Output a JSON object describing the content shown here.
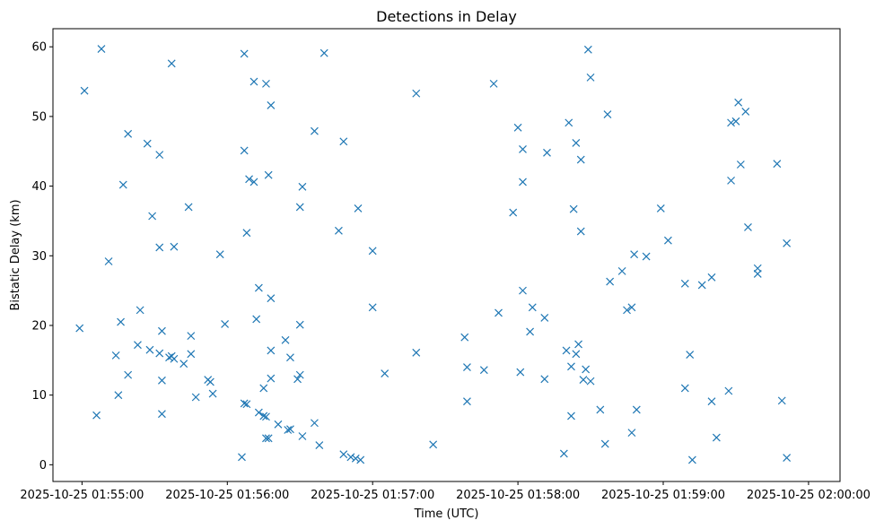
{
  "chart_data": {
    "type": "scatter",
    "title": "Detections in Delay",
    "xlabel": "Time (UTC)",
    "ylabel": "Bistatic Delay (km)",
    "x_tick_labels": [
      "2025-10-25 01:55:00",
      "2025-10-25 01:56:00",
      "2025-10-25 01:57:00",
      "2025-10-25 01:58:00",
      "2025-10-25 01:59:00",
      "2025-10-25 02:00:00"
    ],
    "y_tick_labels": [
      "0",
      "10",
      "20",
      "30",
      "40",
      "50",
      "60"
    ],
    "xlim": [
      "2025-10-25 01:54:48",
      "2025-10-25 02:00:13"
    ],
    "ylim": [
      -2.4,
      62.6
    ],
    "grid": false,
    "marker": "x",
    "color": "#1f77b4",
    "points": [
      {
        "t": "2025-10-25 01:54:59",
        "y": 19.6
      },
      {
        "t": "2025-10-25 01:55:01",
        "y": 53.7
      },
      {
        "t": "2025-10-25 01:55:06",
        "y": 7.1
      },
      {
        "t": "2025-10-25 01:55:08",
        "y": 59.7
      },
      {
        "t": "2025-10-25 01:55:11",
        "y": 29.2
      },
      {
        "t": "2025-10-25 01:55:14",
        "y": 15.7
      },
      {
        "t": "2025-10-25 01:55:15",
        "y": 10.0
      },
      {
        "t": "2025-10-25 01:55:16",
        "y": 20.5
      },
      {
        "t": "2025-10-25 01:55:17",
        "y": 40.2
      },
      {
        "t": "2025-10-25 01:55:19",
        "y": 47.5
      },
      {
        "t": "2025-10-25 01:55:19",
        "y": 12.9
      },
      {
        "t": "2025-10-25 01:55:23",
        "y": 17.2
      },
      {
        "t": "2025-10-25 01:55:24",
        "y": 22.2
      },
      {
        "t": "2025-10-25 01:55:27",
        "y": 46.1
      },
      {
        "t": "2025-10-25 01:55:28",
        "y": 16.5
      },
      {
        "t": "2025-10-25 01:55:29",
        "y": 35.7
      },
      {
        "t": "2025-10-25 01:55:32",
        "y": 44.5
      },
      {
        "t": "2025-10-25 01:55:32",
        "y": 31.2
      },
      {
        "t": "2025-10-25 01:55:32",
        "y": 16.0
      },
      {
        "t": "2025-10-25 01:55:33",
        "y": 19.2
      },
      {
        "t": "2025-10-25 01:55:33",
        "y": 12.1
      },
      {
        "t": "2025-10-25 01:55:33",
        "y": 7.3
      },
      {
        "t": "2025-10-25 01:55:36",
        "y": 15.4
      },
      {
        "t": "2025-10-25 01:55:37",
        "y": 57.6
      },
      {
        "t": "2025-10-25 01:55:37",
        "y": 15.6
      },
      {
        "t": "2025-10-25 01:55:38",
        "y": 31.3
      },
      {
        "t": "2025-10-25 01:55:38",
        "y": 15.2
      },
      {
        "t": "2025-10-25 01:55:42",
        "y": 14.5
      },
      {
        "t": "2025-10-25 01:55:44",
        "y": 37.0
      },
      {
        "t": "2025-10-25 01:55:45",
        "y": 15.9
      },
      {
        "t": "2025-10-25 01:55:45",
        "y": 18.5
      },
      {
        "t": "2025-10-25 01:55:47",
        "y": 9.7
      },
      {
        "t": "2025-10-25 01:55:52",
        "y": 12.2
      },
      {
        "t": "2025-10-25 01:55:53",
        "y": 11.9
      },
      {
        "t": "2025-10-25 01:55:54",
        "y": 10.2
      },
      {
        "t": "2025-10-25 01:55:57",
        "y": 30.2
      },
      {
        "t": "2025-10-25 01:55:59",
        "y": 20.2
      },
      {
        "t": "2025-10-25 01:56:06",
        "y": 1.1
      },
      {
        "t": "2025-10-25 01:56:07",
        "y": 59.0
      },
      {
        "t": "2025-10-25 01:56:07",
        "y": 45.1
      },
      {
        "t": "2025-10-25 01:56:07",
        "y": 8.8
      },
      {
        "t": "2025-10-25 01:56:08",
        "y": 8.7
      },
      {
        "t": "2025-10-25 01:56:08",
        "y": 33.3
      },
      {
        "t": "2025-10-25 01:56:09",
        "y": 41.0
      },
      {
        "t": "2025-10-25 01:56:11",
        "y": 55.0
      },
      {
        "t": "2025-10-25 01:56:11",
        "y": 40.6
      },
      {
        "t": "2025-10-25 01:56:12",
        "y": 20.9
      },
      {
        "t": "2025-10-25 01:56:13",
        "y": 25.4
      },
      {
        "t": "2025-10-25 01:56:13",
        "y": 7.5
      },
      {
        "t": "2025-10-25 01:56:15",
        "y": 11.0
      },
      {
        "t": "2025-10-25 01:56:15",
        "y": 7.0
      },
      {
        "t": "2025-10-25 01:56:16",
        "y": 54.7
      },
      {
        "t": "2025-10-25 01:56:16",
        "y": 6.9
      },
      {
        "t": "2025-10-25 01:56:16",
        "y": 3.8
      },
      {
        "t": "2025-10-25 01:56:17",
        "y": 41.6
      },
      {
        "t": "2025-10-25 01:56:17",
        "y": 3.8
      },
      {
        "t": "2025-10-25 01:56:18",
        "y": 51.6
      },
      {
        "t": "2025-10-25 01:56:18",
        "y": 23.9
      },
      {
        "t": "2025-10-25 01:56:18",
        "y": 16.4
      },
      {
        "t": "2025-10-25 01:56:18",
        "y": 12.4
      },
      {
        "t": "2025-10-25 01:56:21",
        "y": 5.8
      },
      {
        "t": "2025-10-25 01:56:24",
        "y": 17.9
      },
      {
        "t": "2025-10-25 01:56:25",
        "y": 5.0
      },
      {
        "t": "2025-10-25 01:56:26",
        "y": 15.4
      },
      {
        "t": "2025-10-25 01:56:26",
        "y": 5.1
      },
      {
        "t": "2025-10-25 01:56:29",
        "y": 12.3
      },
      {
        "t": "2025-10-25 01:56:30",
        "y": 37.0
      },
      {
        "t": "2025-10-25 01:56:30",
        "y": 20.1
      },
      {
        "t": "2025-10-25 01:56:30",
        "y": 12.9
      },
      {
        "t": "2025-10-25 01:56:31",
        "y": 39.9
      },
      {
        "t": "2025-10-25 01:56:31",
        "y": 4.1
      },
      {
        "t": "2025-10-25 01:56:36",
        "y": 47.9
      },
      {
        "t": "2025-10-25 01:56:36",
        "y": 6.0
      },
      {
        "t": "2025-10-25 01:56:38",
        "y": 2.8
      },
      {
        "t": "2025-10-25 01:56:40",
        "y": 59.1
      },
      {
        "t": "2025-10-25 01:56:46",
        "y": 33.6
      },
      {
        "t": "2025-10-25 01:56:48",
        "y": 46.4
      },
      {
        "t": "2025-10-25 01:56:48",
        "y": 1.5
      },
      {
        "t": "2025-10-25 01:56:51",
        "y": 1.1
      },
      {
        "t": "2025-10-25 01:56:53",
        "y": 0.9
      },
      {
        "t": "2025-10-25 01:56:54",
        "y": 36.8
      },
      {
        "t": "2025-10-25 01:56:55",
        "y": 0.7
      },
      {
        "t": "2025-10-25 01:57:00",
        "y": 30.7
      },
      {
        "t": "2025-10-25 01:57:00",
        "y": 22.6
      },
      {
        "t": "2025-10-25 01:57:05",
        "y": 13.1
      },
      {
        "t": "2025-10-25 01:57:18",
        "y": 53.3
      },
      {
        "t": "2025-10-25 01:57:18",
        "y": 16.1
      },
      {
        "t": "2025-10-25 01:57:25",
        "y": 2.9
      },
      {
        "t": "2025-10-25 01:57:38",
        "y": 18.3
      },
      {
        "t": "2025-10-25 01:57:39",
        "y": 14.0
      },
      {
        "t": "2025-10-25 01:57:39",
        "y": 9.1
      },
      {
        "t": "2025-10-25 01:57:46",
        "y": 13.6
      },
      {
        "t": "2025-10-25 01:57:50",
        "y": 54.7
      },
      {
        "t": "2025-10-25 01:57:52",
        "y": 21.8
      },
      {
        "t": "2025-10-25 01:57:58",
        "y": 36.2
      },
      {
        "t": "2025-10-25 01:58:00",
        "y": 48.4
      },
      {
        "t": "2025-10-25 01:58:01",
        "y": 13.3
      },
      {
        "t": "2025-10-25 01:58:02",
        "y": 45.3
      },
      {
        "t": "2025-10-25 01:58:02",
        "y": 40.6
      },
      {
        "t": "2025-10-25 01:58:02",
        "y": 25.0
      },
      {
        "t": "2025-10-25 01:58:05",
        "y": 19.1
      },
      {
        "t": "2025-10-25 01:58:06",
        "y": 22.6
      },
      {
        "t": "2025-10-25 01:58:11",
        "y": 21.1
      },
      {
        "t": "2025-10-25 01:58:11",
        "y": 12.3
      },
      {
        "t": "2025-10-25 01:58:12",
        "y": 44.8
      },
      {
        "t": "2025-10-25 01:58:19",
        "y": 1.6
      },
      {
        "t": "2025-10-25 01:58:20",
        "y": 16.4
      },
      {
        "t": "2025-10-25 01:58:21",
        "y": 49.1
      },
      {
        "t": "2025-10-25 01:58:22",
        "y": 14.1
      },
      {
        "t": "2025-10-25 01:58:22",
        "y": 7.0
      },
      {
        "t": "2025-10-25 01:58:23",
        "y": 36.7
      },
      {
        "t": "2025-10-25 01:58:24",
        "y": 46.2
      },
      {
        "t": "2025-10-25 01:58:24",
        "y": 15.9
      },
      {
        "t": "2025-10-25 01:58:25",
        "y": 17.3
      },
      {
        "t": "2025-10-25 01:58:26",
        "y": 43.8
      },
      {
        "t": "2025-10-25 01:58:26",
        "y": 33.5
      },
      {
        "t": "2025-10-25 01:58:27",
        "y": 12.2
      },
      {
        "t": "2025-10-25 01:58:28",
        "y": 13.7
      },
      {
        "t": "2025-10-25 01:58:29",
        "y": 59.6
      },
      {
        "t": "2025-10-25 01:58:30",
        "y": 55.6
      },
      {
        "t": "2025-10-25 01:58:30",
        "y": 12.0
      },
      {
        "t": "2025-10-25 01:58:34",
        "y": 7.9
      },
      {
        "t": "2025-10-25 01:58:36",
        "y": 3.0
      },
      {
        "t": "2025-10-25 01:58:37",
        "y": 50.3
      },
      {
        "t": "2025-10-25 01:58:38",
        "y": 26.3
      },
      {
        "t": "2025-10-25 01:58:43",
        "y": 27.8
      },
      {
        "t": "2025-10-25 01:58:45",
        "y": 22.2
      },
      {
        "t": "2025-10-25 01:58:47",
        "y": 22.6
      },
      {
        "t": "2025-10-25 01:58:47",
        "y": 4.6
      },
      {
        "t": "2025-10-25 01:58:48",
        "y": 30.2
      },
      {
        "t": "2025-10-25 01:58:49",
        "y": 7.9
      },
      {
        "t": "2025-10-25 01:58:53",
        "y": 29.9
      },
      {
        "t": "2025-10-25 01:58:59",
        "y": 36.8
      },
      {
        "t": "2025-10-25 01:59:02",
        "y": 32.2
      },
      {
        "t": "2025-10-25 01:59:09",
        "y": 26.0
      },
      {
        "t": "2025-10-25 01:59:09",
        "y": 11.0
      },
      {
        "t": "2025-10-25 01:59:11",
        "y": 15.8
      },
      {
        "t": "2025-10-25 01:59:12",
        "y": 0.7
      },
      {
        "t": "2025-10-25 01:59:16",
        "y": 25.8
      },
      {
        "t": "2025-10-25 01:59:20",
        "y": 26.9
      },
      {
        "t": "2025-10-25 01:59:20",
        "y": 9.1
      },
      {
        "t": "2025-10-25 01:59:22",
        "y": 3.9
      },
      {
        "t": "2025-10-25 01:59:27",
        "y": 10.6
      },
      {
        "t": "2025-10-25 01:59:28",
        "y": 49.1
      },
      {
        "t": "2025-10-25 01:59:28",
        "y": 40.8
      },
      {
        "t": "2025-10-25 01:59:30",
        "y": 49.3
      },
      {
        "t": "2025-10-25 01:59:31",
        "y": 52.0
      },
      {
        "t": "2025-10-25 01:59:32",
        "y": 43.1
      },
      {
        "t": "2025-10-25 01:59:34",
        "y": 50.7
      },
      {
        "t": "2025-10-25 01:59:35",
        "y": 34.1
      },
      {
        "t": "2025-10-25 01:59:39",
        "y": 27.4
      },
      {
        "t": "2025-10-25 01:59:39",
        "y": 28.2
      },
      {
        "t": "2025-10-25 01:59:47",
        "y": 43.2
      },
      {
        "t": "2025-10-25 01:59:49",
        "y": 9.2
      },
      {
        "t": "2025-10-25 01:59:51",
        "y": 31.8
      },
      {
        "t": "2025-10-25 01:59:51",
        "y": 1.0
      }
    ]
  }
}
